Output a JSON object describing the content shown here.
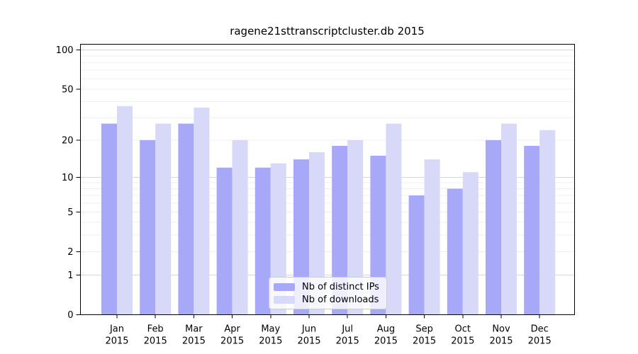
{
  "chart_data": {
    "type": "bar",
    "title": "ragene21sttranscriptcluster.db 2015",
    "categories": [
      "Jan",
      "Feb",
      "Mar",
      "Apr",
      "May",
      "Jun",
      "Jul",
      "Aug",
      "Sep",
      "Oct",
      "Nov",
      "Dec"
    ],
    "year_label": "2015",
    "series": [
      {
        "name": "Nb of distinct IPs",
        "color": "#a8a8f8",
        "values": [
          27,
          20,
          27,
          12,
          12,
          14,
          18,
          15,
          7,
          8,
          20,
          18
        ]
      },
      {
        "name": "Nb of downloads",
        "color": "#d8d8f8",
        "values": [
          37,
          27,
          36,
          20,
          13,
          16,
          20,
          27,
          14,
          11,
          27,
          24
        ]
      }
    ],
    "xlabel": "",
    "ylabel": "",
    "y_axis": {
      "scale": "log1p",
      "ticks": [
        100,
        50,
        20,
        10,
        5,
        2,
        1,
        0
      ],
      "minor_gridlines": [
        2,
        3,
        4,
        5,
        6,
        7,
        8,
        9,
        20,
        30,
        40,
        50,
        60,
        70,
        80,
        90
      ],
      "major_gridlines": [
        1,
        10,
        100
      ],
      "ylim": [
        0,
        111
      ]
    },
    "legend_position": "bottom-center",
    "grid": "on",
    "colors": {
      "axis": "#000000",
      "minor_grid": "#efefef",
      "major_grid": "#d6d6d6",
      "legend_border": "#cccccc",
      "text": "#000000"
    }
  }
}
